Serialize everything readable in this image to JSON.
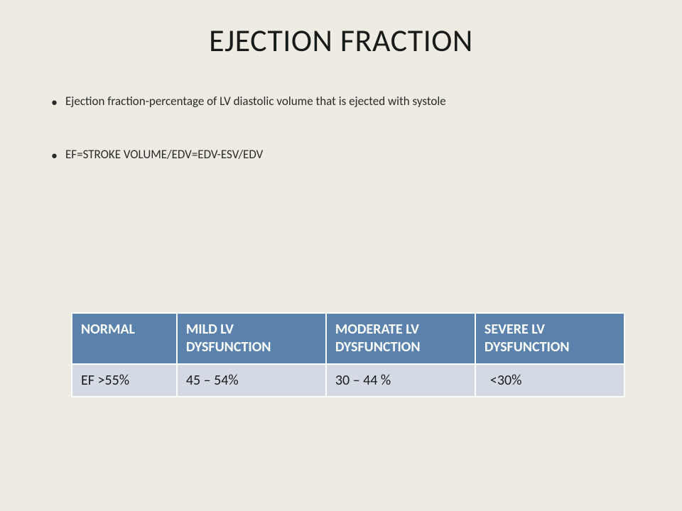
{
  "title": "EJECTION FRACTION",
  "bullets": [
    "Ejection fraction-percentage of LV  diastolic volume that is ejected with systole",
    "EF=STROKE VOLUME/EDV=EDV-ESV/EDV"
  ],
  "table": {
    "header_bg": "#5a82ad",
    "header_fg": "#ffffff",
    "row_bg": "#d4dae4",
    "border_color": "#ffffff",
    "columns": [
      "NORMAL",
      "MILD LV DYSFUNCTION",
      "MODERATE LV DYSFUNCTION",
      "SEVERE\nLV DYSFUNCTION"
    ],
    "rows": [
      [
        "EF  >55%",
        "45 – 54%",
        "30 – 44 %",
        " <30%"
      ]
    ]
  },
  "background_color": "#eeece2"
}
